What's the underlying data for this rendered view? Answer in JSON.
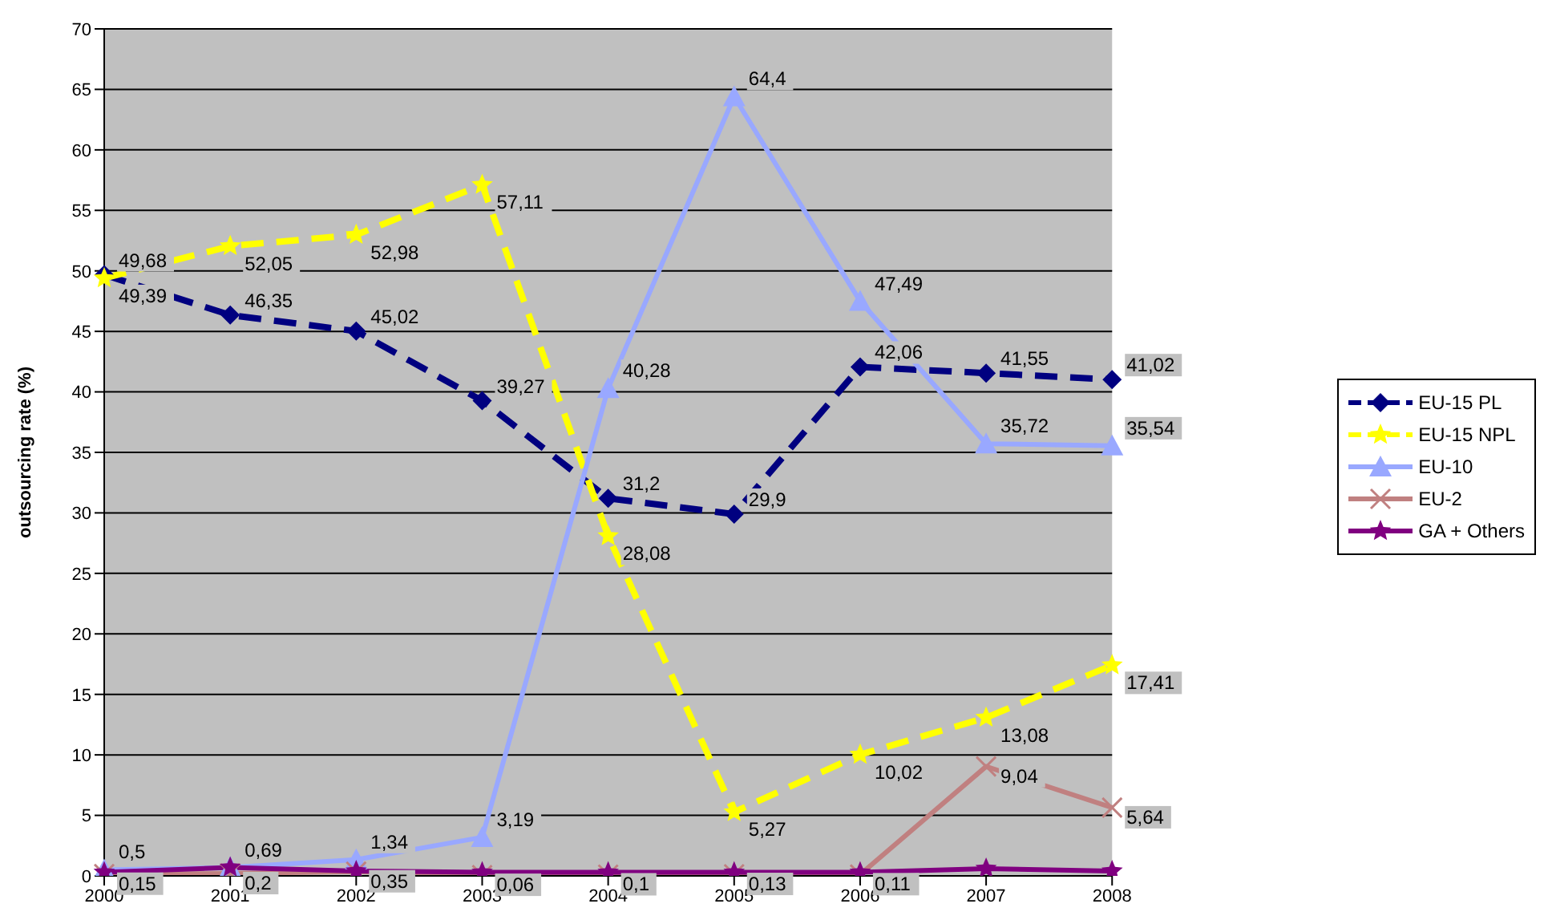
{
  "chart_data": {
    "type": "line",
    "ylabel": "outsourcing rate (%)",
    "categories": [
      "2000",
      "2001",
      "2002",
      "2003",
      "2004",
      "2005",
      "2006",
      "2007",
      "2008"
    ],
    "ylim": [
      0,
      70
    ],
    "yticks": [
      0,
      5,
      10,
      15,
      20,
      25,
      30,
      35,
      40,
      45,
      50,
      55,
      60,
      65,
      70
    ],
    "grid": "y",
    "legend": "right",
    "series": [
      {
        "name": "EU-15 PL",
        "color": "#000080",
        "marker": "diamond",
        "line_style": "dashed",
        "values": [
          49.68,
          46.35,
          45.02,
          39.27,
          31.2,
          29.9,
          42.06,
          41.55,
          41.02
        ],
        "value_labels": [
          "49,68",
          "46,35",
          "45,02",
          "39,27",
          "31,2",
          "29,9",
          "42,06",
          "41,55",
          "41,02"
        ]
      },
      {
        "name": "EU-15 NPL",
        "color": "#ffff00",
        "marker": "star",
        "line_style": "dashed",
        "values": [
          49.39,
          52.05,
          52.98,
          57.11,
          28.08,
          5.27,
          10.02,
          13.08,
          17.41
        ],
        "value_labels": [
          "49,39",
          "52,05",
          "52,98",
          "57,11",
          "28,08",
          "5,27",
          "10,02",
          "13,08",
          "17,41"
        ]
      },
      {
        "name": "EU-10",
        "color": "#99a8ff",
        "marker": "triangle",
        "line_style": "solid",
        "values": [
          0.5,
          0.69,
          1.34,
          3.19,
          40.28,
          64.4,
          47.49,
          35.72,
          35.54
        ],
        "value_labels": [
          "0,5",
          "0,69",
          "1,34",
          "3,19",
          "40,28",
          "64,4",
          "47,49",
          "35,72",
          "35,54"
        ]
      },
      {
        "name": "EU-2",
        "color": "#c08080",
        "marker": "cross",
        "line_style": "solid",
        "values": [
          0.15,
          0.2,
          0.35,
          0.06,
          0.1,
          0.13,
          0.11,
          9.04,
          5.64
        ],
        "value_labels": [
          "0,15",
          "0,2",
          "0,35",
          "0,06",
          "0,1",
          "0,13",
          "0,11",
          "9,04",
          "5,64"
        ]
      },
      {
        "name": "GA + Others",
        "color": "#800080",
        "marker": "star",
        "line_style": "solid",
        "values": [
          0.3,
          0.7,
          0.4,
          0.3,
          0.3,
          0.3,
          0.3,
          0.6,
          0.4
        ]
      }
    ]
  }
}
